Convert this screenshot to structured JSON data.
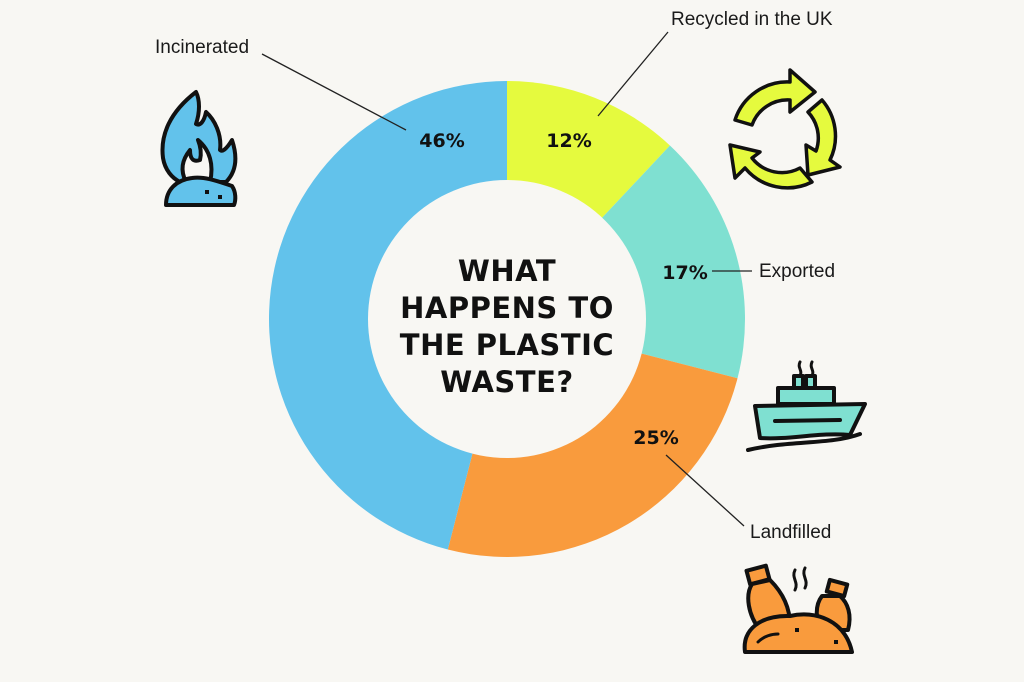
{
  "chart_data": {
    "type": "pie",
    "donut": true,
    "title": "WHAT HAPPENS TO THE PLASTIC WASTE?",
    "title_lines": [
      "WHAT",
      "HAPPENS TO",
      "THE PLASTIC",
      "WASTE?"
    ],
    "start": "12 o'clock, clockwise",
    "slices": [
      {
        "name": "Recycled in the UK",
        "value": 12,
        "label": "12%",
        "color": "#e5fa3e",
        "icon": "recycle-arrows-icon"
      },
      {
        "name": "Exported",
        "value": 17,
        "label": "17%",
        "color": "#7fe0d1",
        "icon": "ship-icon"
      },
      {
        "name": "Landfilled",
        "value": 25,
        "label": "25%",
        "color": "#f99b3d",
        "icon": "landfill-bottles-icon"
      },
      {
        "name": "Incinerated",
        "value": 46,
        "label": "46%",
        "color": "#62c2eb",
        "icon": "flame-icon"
      }
    ]
  },
  "background": "#f8f7f3"
}
